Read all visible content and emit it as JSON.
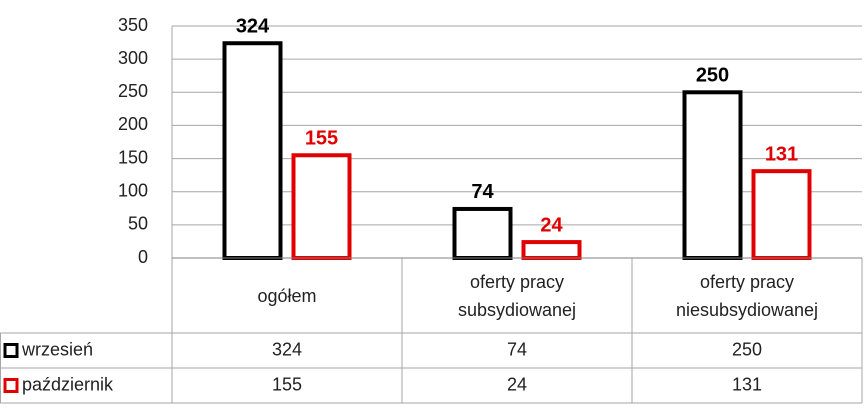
{
  "chart_data": {
    "type": "bar",
    "categories": [
      "ogółem",
      "oferty pracy subsydiowanej",
      "oferty pracy niesubsydiowanej"
    ],
    "series": [
      {
        "name": "wrzesień",
        "color": "#000000",
        "values": [
          324,
          74,
          250
        ]
      },
      {
        "name": "październik",
        "color": "#e00000",
        "values": [
          155,
          24,
          131
        ]
      }
    ],
    "ylim": [
      0,
      350
    ],
    "yticks": [
      0,
      50,
      100,
      150,
      200,
      250,
      300,
      350
    ],
    "grid": true,
    "data_table": true
  }
}
